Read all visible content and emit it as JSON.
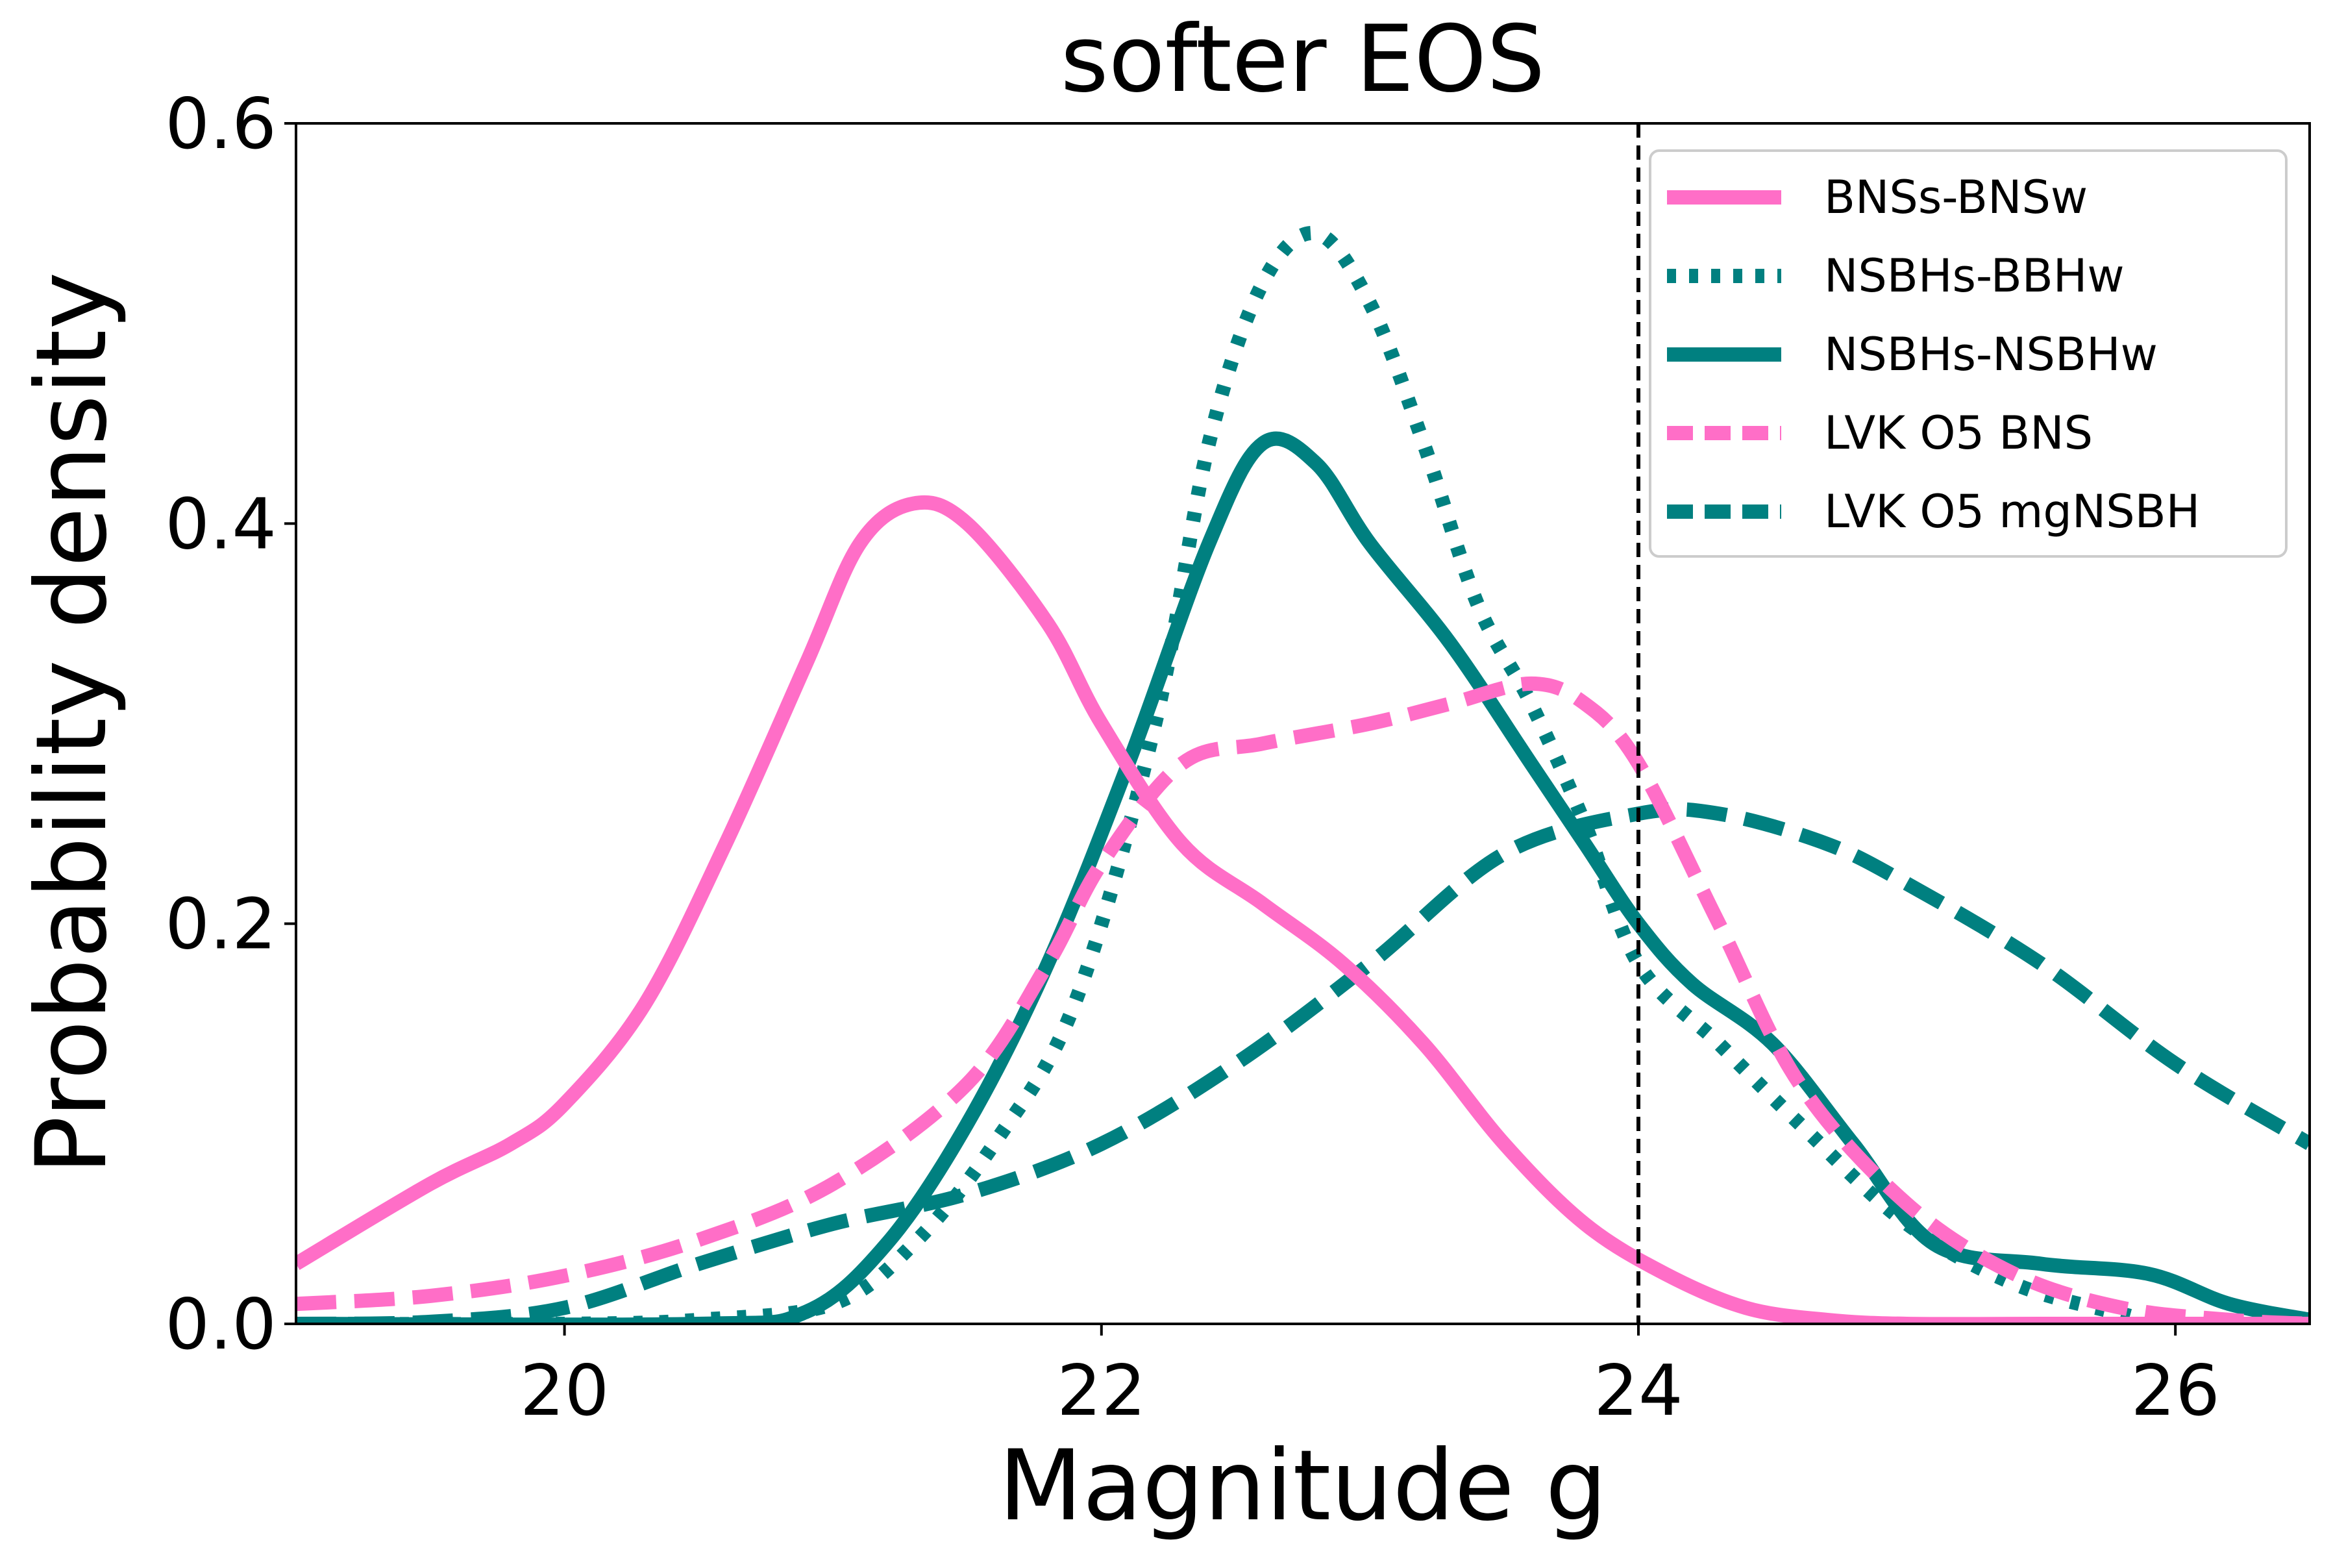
{
  "colors": {
    "pink": "#ff6ec7",
    "teal": "#008080",
    "axis": "#000000",
    "background": "#ffffff"
  },
  "chart_data": {
    "type": "line",
    "title": "softer EOS",
    "xlabel": "Magnitude g",
    "ylabel": "Probability density",
    "xlim": [
      19.0,
      26.5
    ],
    "ylim": [
      0.0,
      0.6
    ],
    "xticks": [
      20,
      22,
      24,
      26
    ],
    "xtick_labels": [
      "20",
      "22",
      "24",
      "26"
    ],
    "yticks": [
      0.0,
      0.2,
      0.4,
      0.6
    ],
    "ytick_labels": [
      "0.0",
      "0.2",
      "0.4",
      "0.6"
    ],
    "grid": false,
    "legend_position": "top-right",
    "annotations": [
      {
        "type": "vertical-line",
        "x": 24.0,
        "style": "dashed",
        "color": "#000000"
      }
    ],
    "series": [
      {
        "name": "BNSs-BNSw",
        "color": "#ff6ec7",
        "style": "solid",
        "x": [
          19.0,
          19.5,
          19.8,
          20.0,
          20.3,
          20.6,
          20.9,
          21.1,
          21.3,
          21.5,
          21.8,
          22.0,
          22.3,
          22.6,
          22.9,
          23.2,
          23.5,
          23.8,
          24.1,
          24.4,
          24.7,
          25.0,
          25.5,
          26.0,
          26.5
        ],
        "values": [
          0.03,
          0.07,
          0.09,
          0.11,
          0.16,
          0.24,
          0.33,
          0.39,
          0.41,
          0.4,
          0.35,
          0.3,
          0.24,
          0.21,
          0.18,
          0.14,
          0.09,
          0.05,
          0.025,
          0.008,
          0.002,
          0.0,
          0.0,
          0.0,
          0.0
        ]
      },
      {
        "name": "NSBHs-BBHw",
        "color": "#008080",
        "style": "dotted",
        "x": [
          19.0,
          20.0,
          20.5,
          21.0,
          21.3,
          21.6,
          21.9,
          22.2,
          22.4,
          22.6,
          22.8,
          23.0,
          23.2,
          23.4,
          23.6,
          23.8,
          24.0,
          24.3,
          24.6,
          25.0,
          25.4,
          25.8,
          26.0,
          26.5
        ],
        "values": [
          0.0,
          0.0,
          0.002,
          0.01,
          0.04,
          0.09,
          0.16,
          0.3,
          0.44,
          0.52,
          0.545,
          0.51,
          0.44,
          0.36,
          0.31,
          0.25,
          0.18,
          0.14,
          0.1,
          0.05,
          0.02,
          0.005,
          0.0,
          0.0
        ]
      },
      {
        "name": "NSBHs-NSBHw",
        "color": "#008080",
        "style": "solid",
        "x": [
          19.0,
          20.5,
          20.9,
          21.2,
          21.5,
          21.8,
          22.1,
          22.4,
          22.6,
          22.8,
          23.0,
          23.3,
          23.6,
          23.8,
          24.0,
          24.2,
          24.5,
          24.8,
          25.1,
          25.5,
          25.9,
          26.2,
          26.5
        ],
        "values": [
          0.0,
          0.0,
          0.006,
          0.04,
          0.1,
          0.18,
          0.28,
          0.39,
          0.44,
          0.43,
          0.39,
          0.34,
          0.28,
          0.24,
          0.2,
          0.17,
          0.14,
          0.09,
          0.04,
          0.03,
          0.025,
          0.01,
          0.002
        ]
      },
      {
        "name": "LVK O5 BNS",
        "color": "#ff6ec7",
        "style": "dashed",
        "x": [
          19.0,
          19.5,
          20.0,
          20.5,
          21.0,
          21.5,
          21.8,
          22.0,
          22.3,
          22.6,
          23.0,
          23.3,
          23.6,
          23.8,
          24.0,
          24.3,
          24.6,
          25.0,
          25.4,
          25.8,
          26.2,
          26.5
        ],
        "values": [
          0.01,
          0.014,
          0.024,
          0.042,
          0.07,
          0.12,
          0.18,
          0.23,
          0.28,
          0.29,
          0.3,
          0.31,
          0.32,
          0.31,
          0.28,
          0.2,
          0.12,
          0.06,
          0.025,
          0.008,
          0.002,
          0.0
        ]
      },
      {
        "name": "LVK O5 mgNSBH",
        "color": "#008080",
        "style": "dashed",
        "x": [
          19.0,
          19.5,
          20.0,
          20.5,
          21.0,
          21.5,
          22.0,
          22.5,
          23.0,
          23.5,
          24.0,
          24.3,
          24.7,
          25.0,
          25.5,
          26.0,
          26.5
        ],
        "values": [
          0.0,
          0.001,
          0.008,
          0.03,
          0.05,
          0.065,
          0.09,
          0.13,
          0.18,
          0.235,
          0.255,
          0.255,
          0.24,
          0.22,
          0.18,
          0.13,
          0.09
        ]
      }
    ]
  }
}
